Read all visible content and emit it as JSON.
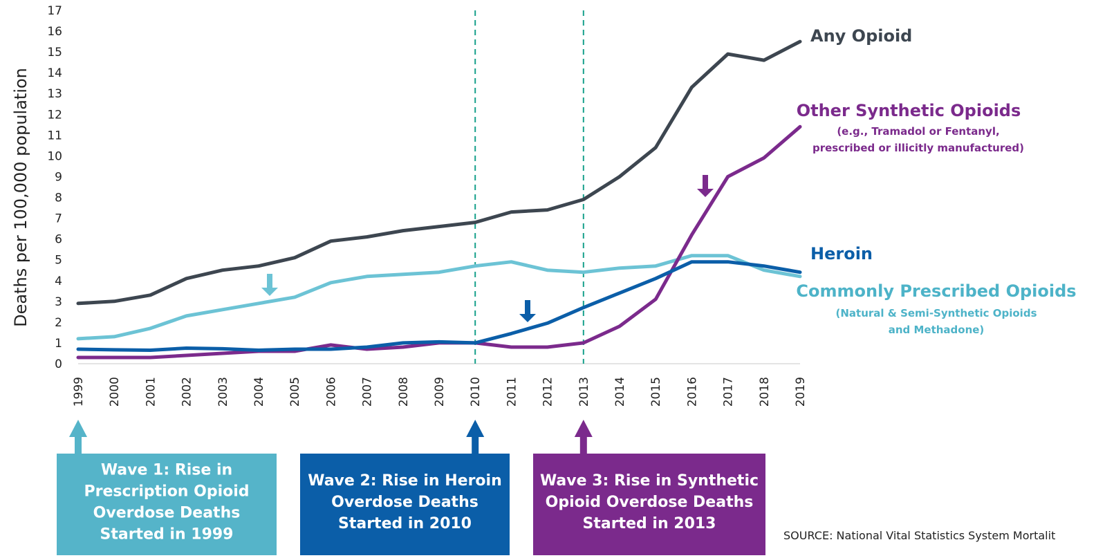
{
  "chart_data": {
    "type": "line",
    "ylabel": "Deaths per 100,000 population",
    "xlabel": "",
    "ylim": [
      0,
      17
    ],
    "yticks": [
      "0",
      "1",
      "2",
      "3",
      "4",
      "5",
      "6",
      "7",
      "8",
      "9",
      "10",
      "11",
      "12",
      "13",
      "14",
      "15",
      "16",
      "17"
    ],
    "x": [
      "1999",
      "2000",
      "2001",
      "2002",
      "2003",
      "2004",
      "2005",
      "2006",
      "2007",
      "2008",
      "2009",
      "2010",
      "2011",
      "2012",
      "2013",
      "2014",
      "2015",
      "2016",
      "2017",
      "2018",
      "2019"
    ],
    "series": [
      {
        "key": "any",
        "name": "Any Opioid",
        "color": "#3d4650",
        "values": [
          2.9,
          3.0,
          3.3,
          4.1,
          4.5,
          4.7,
          5.1,
          5.9,
          6.1,
          6.4,
          6.6,
          6.8,
          7.3,
          7.4,
          7.9,
          9.0,
          10.4,
          13.3,
          14.9,
          14.6,
          15.5
        ]
      },
      {
        "key": "rx",
        "name": "Commonly Prescribed Opioids",
        "color": "#6cc3d5",
        "values": [
          1.2,
          1.3,
          1.7,
          2.3,
          2.6,
          2.9,
          3.2,
          3.9,
          4.2,
          4.3,
          4.4,
          4.7,
          4.9,
          4.5,
          4.4,
          4.6,
          4.7,
          5.2,
          5.2,
          4.5,
          4.2
        ]
      },
      {
        "key": "heroin",
        "name": "Heroin",
        "color": "#0b5ea8",
        "values": [
          0.7,
          0.67,
          0.65,
          0.75,
          0.72,
          0.65,
          0.7,
          0.7,
          0.8,
          1.0,
          1.05,
          1.0,
          1.45,
          1.95,
          2.7,
          3.4,
          4.1,
          4.9,
          4.9,
          4.7,
          4.4
        ]
      },
      {
        "key": "synthetic",
        "name": "Other Synthetic Opioids",
        "color": "#7b2a8c",
        "values": [
          0.3,
          0.3,
          0.3,
          0.4,
          0.5,
          0.6,
          0.6,
          0.9,
          0.7,
          0.8,
          1.0,
          1.0,
          0.8,
          0.8,
          1.0,
          1.8,
          3.1,
          6.2,
          9.0,
          9.9,
          11.4
        ]
      }
    ],
    "vlines": [
      "2010",
      "2013"
    ],
    "vline_color": "#15a08a"
  },
  "labels": {
    "any": {
      "title": "Any Opioid",
      "sub": [],
      "color": "#3d4650"
    },
    "synthetic": {
      "title": "Other Synthetic Opioids",
      "sub": [
        "(e.g., Tramadol or Fentanyl,",
        "prescribed or illicitly manufactured)"
      ],
      "color": "#7b2a8c"
    },
    "heroin": {
      "title": "Heroin",
      "sub": [],
      "color": "#0b5ea8"
    },
    "rx": {
      "title": "Commonly Prescribed Opioids",
      "sub": [
        "(Natural & Semi-Synthetic Opioids",
        "and Methadone)"
      ],
      "color": "#4db3c8"
    }
  },
  "waves": [
    {
      "key": "w1",
      "year": "1999",
      "color": "#55b4c9",
      "lines": [
        "Wave 1: Rise in",
        "Prescription Opioid",
        "Overdose Deaths",
        "Started in 1999"
      ]
    },
    {
      "key": "w2",
      "year": "2010",
      "color": "#0b5ea8",
      "lines": [
        "Wave 2: Rise in Heroin",
        "Overdose Deaths",
        "Started in 2010"
      ]
    },
    {
      "key": "w3",
      "year": "2013",
      "color": "#7b2a8c",
      "lines": [
        "Wave 3: Rise in Synthetic",
        "Opioid Overdose Deaths",
        "Started in 2013"
      ]
    }
  ],
  "source": "SOURCE: National Vital Statistics System Mortalit"
}
